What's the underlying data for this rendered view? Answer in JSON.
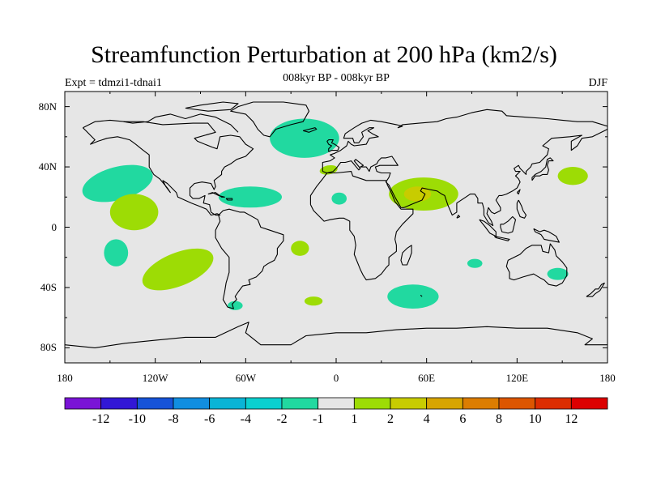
{
  "title": "Streamfunction Perturbation at 200 hPa (km2/s)",
  "subtitle": "008kyr BP - 008kyr BP",
  "left_label": "Expt = tdmzi1-tdnai1",
  "season": "DJF",
  "colors": {
    "background": "#e6e6e6",
    "neg_1_2": "#21d9a0",
    "pos_1_2": "#9ddc05",
    "pos_2_4": "#c8cc00",
    "coast": "#000000"
  },
  "axes": {
    "y_ticks": [
      {
        "lat": 80,
        "label": "80N"
      },
      {
        "lat": 40,
        "label": "40N"
      },
      {
        "lat": 0,
        "label": "0"
      },
      {
        "lat": -40,
        "label": "40S"
      },
      {
        "lat": -80,
        "label": "80S"
      }
    ],
    "x_ticks": [
      {
        "lon": -180,
        "label": "180"
      },
      {
        "lon": -120,
        "label": "120W"
      },
      {
        "lon": -60,
        "label": "60W"
      },
      {
        "lon": 0,
        "label": "0"
      },
      {
        "lon": 60,
        "label": "60E"
      },
      {
        "lon": 120,
        "label": "120E"
      },
      {
        "lon": 180,
        "label": "180"
      }
    ]
  },
  "colorbar": {
    "colors": [
      "#7a14d6",
      "#3217d6",
      "#1653d8",
      "#118ee0",
      "#0ab4d6",
      "#0bd0cf",
      "#21d9a0",
      "#e6e6e6",
      "#9ddc05",
      "#c8cc00",
      "#d7a500",
      "#dc7d00",
      "#dc5600",
      "#dc2d00",
      "#dc0000"
    ],
    "labels": [
      "-12",
      "-10",
      "-8",
      "-6",
      "-4",
      "-2",
      "-1",
      "1",
      "2",
      "4",
      "6",
      "8",
      "10",
      "12"
    ]
  },
  "chart_data": {
    "type": "map-contour",
    "title": "Streamfunction Perturbation at 200 hPa (km2/s)",
    "projection": "cylindrical equidistant",
    "lon_range": [
      -180,
      180
    ],
    "lat_range": [
      -90,
      90
    ],
    "levels": [
      -12,
      -10,
      -8,
      -6,
      -4,
      -2,
      -1,
      1,
      2,
      4,
      6,
      8,
      10,
      12
    ],
    "anomalies": [
      {
        "lon": -145,
        "lat": 29,
        "rx": 24,
        "ry": 11,
        "rot": -15,
        "range": "-2 to -1"
      },
      {
        "lon": -134,
        "lat": 10,
        "rx": 16,
        "ry": 12,
        "rot": 0,
        "range": "1 to 2"
      },
      {
        "lon": -146,
        "lat": -17,
        "rx": 8,
        "ry": 9,
        "rot": 0,
        "range": "-2 to -1"
      },
      {
        "lon": -105,
        "lat": -28,
        "rx": 25,
        "ry": 11,
        "rot": -22,
        "range": "1 to 2"
      },
      {
        "lon": -57,
        "lat": 20,
        "rx": 21,
        "ry": 7,
        "rot": 0,
        "range": "-2 to -1"
      },
      {
        "lon": -21,
        "lat": 59,
        "rx": 23,
        "ry": 13,
        "rot": 0,
        "range": "-2 to -1"
      },
      {
        "lon": -5,
        "lat": 38,
        "rx": 6,
        "ry": 3,
        "rot": -10,
        "range": "1 to 2"
      },
      {
        "lon": -24,
        "lat": -14,
        "rx": 6,
        "ry": 5,
        "rot": 0,
        "range": "1 to 2"
      },
      {
        "lon": 2,
        "lat": 19,
        "rx": 5,
        "ry": 4,
        "rot": 0,
        "range": "-2 to -1"
      },
      {
        "lon": 58,
        "lat": 22,
        "rx": 23,
        "ry": 11,
        "rot": 0,
        "range": "1 to 2"
      },
      {
        "lon": 54,
        "lat": 22,
        "rx": 9,
        "ry": 5,
        "rot": 0,
        "range": "2 to 4"
      },
      {
        "lon": 51,
        "lat": -46,
        "rx": 17,
        "ry": 8,
        "rot": 0,
        "range": "-2 to -1"
      },
      {
        "lon": 92,
        "lat": -24,
        "rx": 5,
        "ry": 3,
        "rot": 0,
        "range": "-2 to -1"
      },
      {
        "lon": 147,
        "lat": -31,
        "rx": 7,
        "ry": 4,
        "rot": 0,
        "range": "-2 to -1"
      },
      {
        "lon": 157,
        "lat": 34,
        "rx": 10,
        "ry": 6,
        "rot": 0,
        "range": "1 to 2"
      },
      {
        "lon": -15,
        "lat": -49,
        "rx": 6,
        "ry": 3,
        "rot": 0,
        "range": "1 to 2"
      },
      {
        "lon": -67,
        "lat": -52,
        "rx": 5,
        "ry": 3,
        "rot": 0,
        "range": "-2 to -1"
      }
    ]
  }
}
